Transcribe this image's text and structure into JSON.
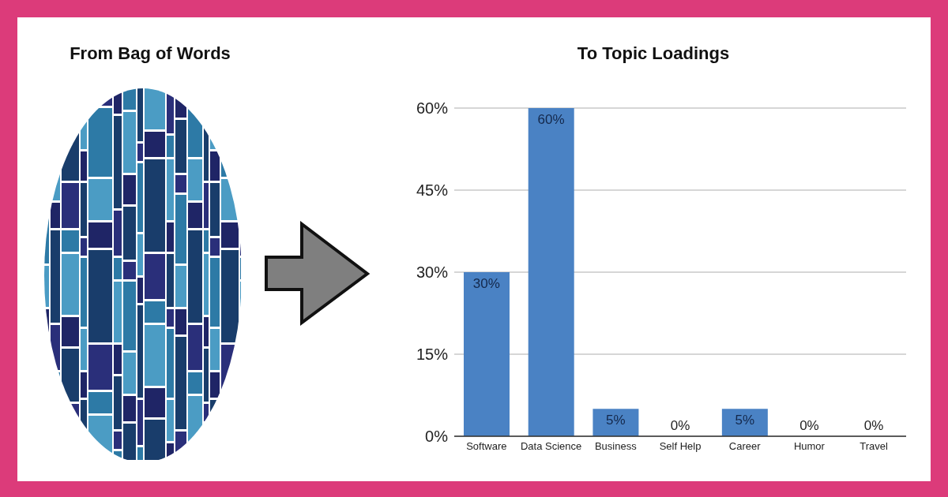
{
  "chart_data": {
    "type": "bar",
    "title": "To Topic Loadings",
    "annotations": [
      "From Bag of Words"
    ],
    "categories": [
      "Software",
      "Data Science",
      "Business",
      "Self Help",
      "Career",
      "Humor",
      "Travel"
    ],
    "values": [
      30,
      60,
      5,
      0,
      5,
      0,
      0
    ],
    "color": "#4a82c4",
    "value_labels": [
      "30%",
      "60%",
      "5%",
      "0%",
      "5%",
      "0%",
      "0%"
    ],
    "ylim": [
      0,
      60
    ],
    "yticks": [
      {
        "value": 0,
        "label": "0%"
      },
      {
        "value": 15,
        "label": "15%"
      },
      {
        "value": 30,
        "label": "30%"
      },
      {
        "value": 45,
        "label": "45%"
      },
      {
        "value": 60,
        "label": "60%"
      }
    ],
    "grid": "y"
  }
}
